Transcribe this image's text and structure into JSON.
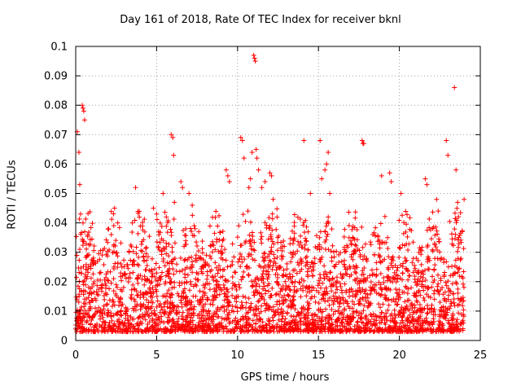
{
  "chart_data": {
    "type": "scatter",
    "title": "Day 161 of 2018, Rate Of TEC Index for receiver bknl",
    "xlabel": "GPS time / hours",
    "ylabel": "ROTI / TECUs",
    "xlim": [
      0,
      25
    ],
    "ylim": [
      0,
      0.1
    ],
    "xticks": [
      "0",
      "5",
      "10",
      "15",
      "20",
      "25"
    ],
    "yticks": [
      "0",
      "0.01",
      "0.02",
      "0.03",
      "0.04",
      "0.05",
      "0.06",
      "0.07",
      "0.08",
      "0.09",
      "0.1"
    ],
    "grid": true,
    "marker": "+",
    "color": "#ff0000",
    "series": [
      {
        "name": "ROTI",
        "x": [
          0.1,
          0.2,
          0.25,
          0.3,
          0.4,
          0.45,
          0.5,
          0.55,
          2.0,
          2.2,
          2.4,
          2.6,
          3.5,
          3.7,
          4.8,
          5.0,
          5.4,
          5.9,
          6.0,
          6.05,
          6.1,
          6.5,
          6.6,
          7.0,
          7.2,
          9.3,
          9.4,
          9.5,
          10.2,
          10.3,
          10.4,
          10.7,
          10.8,
          10.9,
          11.0,
          11.05,
          11.1,
          11.15,
          11.2,
          11.3,
          11.5,
          11.7,
          12.0,
          12.1,
          12.2,
          14.1,
          14.5,
          15.1,
          15.2,
          15.4,
          15.5,
          15.6,
          15.7,
          17.7,
          17.75,
          17.8,
          18.9,
          19.4,
          19.5,
          20.1,
          21.6,
          21.7,
          22.3,
          22.4,
          22.9,
          23.0,
          23.4,
          23.5,
          23.6,
          24.0
        ],
        "y": [
          0.071,
          0.064,
          0.053,
          0.043,
          0.08,
          0.079,
          0.078,
          0.075,
          0.038,
          0.036,
          0.045,
          0.04,
          0.04,
          0.052,
          0.045,
          0.043,
          0.05,
          0.07,
          0.069,
          0.063,
          0.047,
          0.054,
          0.052,
          0.05,
          0.046,
          0.058,
          0.056,
          0.054,
          0.069,
          0.068,
          0.062,
          0.052,
          0.055,
          0.064,
          0.097,
          0.096,
          0.095,
          0.065,
          0.062,
          0.058,
          0.052,
          0.054,
          0.057,
          0.056,
          0.048,
          0.068,
          0.05,
          0.068,
          0.055,
          0.058,
          0.06,
          0.064,
          0.05,
          0.068,
          0.067,
          0.067,
          0.056,
          0.057,
          0.054,
          0.05,
          0.055,
          0.053,
          0.048,
          0.044,
          0.068,
          0.063,
          0.086,
          0.058,
          0.047,
          0.048
        ]
      }
    ],
    "bulk_density": {
      "description": "dense band of ROTI points between roughly 0.003 and 0.045 TECU/s across 0 to 24 h",
      "x_range": [
        0,
        24
      ],
      "baseline": 0.003,
      "typical_max": 0.045
    }
  }
}
